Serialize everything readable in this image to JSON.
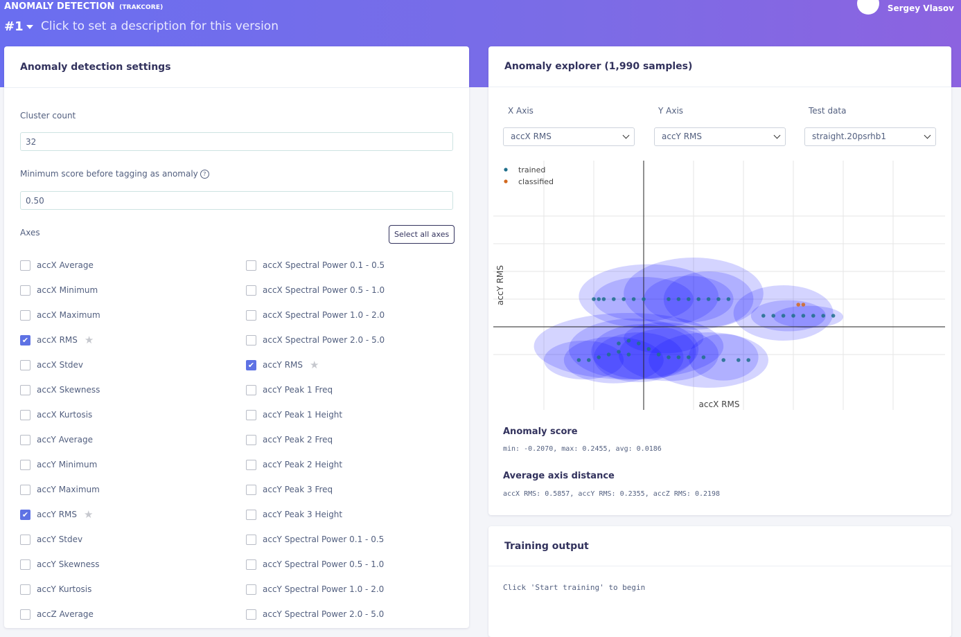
{
  "header": {
    "title": "ANOMALY DETECTION",
    "project": "(TRAKCORE)",
    "version": "#1",
    "version_description": "Click to set a description for this version",
    "user_name": "Sergey Vlasov"
  },
  "settings": {
    "title": "Anomaly detection settings",
    "cluster_count_label": "Cluster count",
    "cluster_count_value": "32",
    "min_score_label": "Minimum score before tagging as anomaly",
    "min_score_value": "0.50",
    "axes_label": "Axes",
    "select_all_label": "Select all axes",
    "axes_left": [
      {
        "label": "accX Average",
        "checked": false
      },
      {
        "label": "accX Minimum",
        "checked": false
      },
      {
        "label": "accX Maximum",
        "checked": false
      },
      {
        "label": "accX RMS",
        "checked": true
      },
      {
        "label": "accX Stdev",
        "checked": false
      },
      {
        "label": "accX Skewness",
        "checked": false
      },
      {
        "label": "accX Kurtosis",
        "checked": false
      },
      {
        "label": "accY Average",
        "checked": false
      },
      {
        "label": "accY Minimum",
        "checked": false
      },
      {
        "label": "accY Maximum",
        "checked": false
      },
      {
        "label": "accY RMS",
        "checked": true
      },
      {
        "label": "accY Stdev",
        "checked": false
      },
      {
        "label": "accY Skewness",
        "checked": false
      },
      {
        "label": "accY Kurtosis",
        "checked": false
      },
      {
        "label": "accZ Average",
        "checked": false
      }
    ],
    "axes_right": [
      {
        "label": "accX Spectral Power 0.1 - 0.5",
        "checked": false
      },
      {
        "label": "accX Spectral Power 0.5 - 1.0",
        "checked": false
      },
      {
        "label": "accX Spectral Power 1.0 - 2.0",
        "checked": false
      },
      {
        "label": "accX Spectral Power 2.0 - 5.0",
        "checked": false
      },
      {
        "label": "accY RMS",
        "checked": true
      },
      {
        "label": "accY Peak 1 Freq",
        "checked": false
      },
      {
        "label": "accY Peak 1 Height",
        "checked": false
      },
      {
        "label": "accY Peak 2 Freq",
        "checked": false
      },
      {
        "label": "accY Peak 2 Height",
        "checked": false
      },
      {
        "label": "accY Peak 3 Freq",
        "checked": false
      },
      {
        "label": "accY Peak 3 Height",
        "checked": false
      },
      {
        "label": "accY Spectral Power 0.1 - 0.5",
        "checked": false
      },
      {
        "label": "accY Spectral Power 0.5 - 1.0",
        "checked": false
      },
      {
        "label": "accY Spectral Power 1.0 - 2.0",
        "checked": false
      },
      {
        "label": "accY Spectral Power 2.0 - 5.0",
        "checked": false
      }
    ]
  },
  "explorer": {
    "title": "Anomaly explorer (1,990 samples)",
    "x_axis_label": "X Axis",
    "x_axis_value": "accX RMS",
    "y_axis_label": "Y Axis",
    "y_axis_value": "accY RMS",
    "test_data_label": "Test data",
    "test_data_value": "straight.20psrhb1",
    "anomaly_score_title": "Anomaly score",
    "anomaly_score_text": "min: -0.2070, max: 0.2455, avg: 0.0186",
    "avg_distance_title": "Average axis distance",
    "avg_distance_text": "accX RMS: 0.5857, accY RMS: 0.2355, accZ RMS: 0.2198",
    "colors": {
      "trained": "#1f6f8b",
      "classified": "#d2691e",
      "cluster": "#0000ff"
    }
  },
  "chart_data": {
    "type": "scatter",
    "xlabel": "accX RMS",
    "ylabel": "accY RMS",
    "legend_position": "top-left",
    "grid": true,
    "series": [
      {
        "name": "trained",
        "points": [
          [
            -1.0,
            0.5
          ],
          [
            -0.9,
            0.5
          ],
          [
            -0.8,
            0.5
          ],
          [
            -0.6,
            0.5
          ],
          [
            -0.4,
            0.5
          ],
          [
            -0.2,
            0.5
          ],
          [
            0.0,
            0.5
          ],
          [
            0.5,
            0.5
          ],
          [
            0.7,
            0.5
          ],
          [
            0.9,
            0.5
          ],
          [
            1.1,
            0.5
          ],
          [
            1.3,
            0.5
          ],
          [
            1.5,
            0.5
          ],
          [
            1.7,
            0.5
          ],
          [
            2.4,
            0.2
          ],
          [
            2.6,
            0.2
          ],
          [
            2.8,
            0.2
          ],
          [
            3.0,
            0.2
          ],
          [
            3.2,
            0.2
          ],
          [
            3.4,
            0.2
          ],
          [
            3.6,
            0.2
          ],
          [
            3.8,
            0.2
          ],
          [
            -1.3,
            -0.6
          ],
          [
            -1.1,
            -0.6
          ],
          [
            -0.9,
            -0.55
          ],
          [
            -0.7,
            -0.5
          ],
          [
            -0.5,
            -0.45
          ],
          [
            -0.3,
            -0.5
          ],
          [
            -0.5,
            -0.3
          ],
          [
            -0.3,
            -0.25
          ],
          [
            -0.1,
            -0.3
          ],
          [
            0.1,
            -0.4
          ],
          [
            0.3,
            -0.5
          ],
          [
            0.5,
            -0.55
          ],
          [
            0.7,
            -0.55
          ],
          [
            0.9,
            -0.55
          ],
          [
            1.2,
            -0.55
          ],
          [
            1.6,
            -0.6
          ],
          [
            1.9,
            -0.6
          ],
          [
            2.1,
            -0.6
          ]
        ]
      },
      {
        "name": "classified",
        "points": [
          [
            3.1,
            0.4
          ],
          [
            3.2,
            0.4
          ]
        ]
      }
    ]
  },
  "training": {
    "title": "Training output",
    "text": "Click 'Start training' to begin"
  }
}
